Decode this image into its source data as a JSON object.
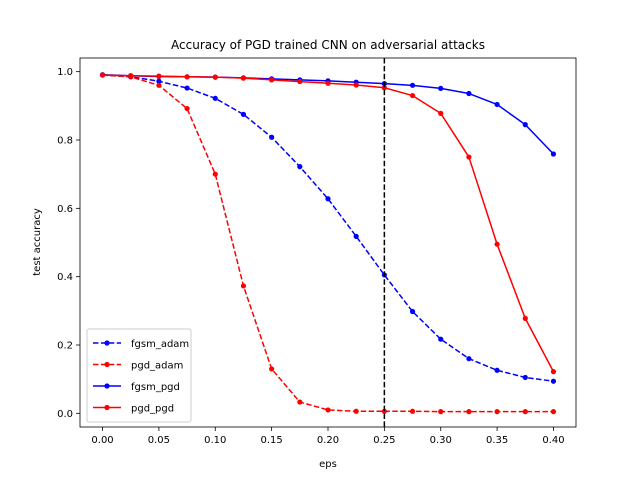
{
  "chart_data": {
    "type": "line",
    "title": "Accuracy of PGD trained CNN on adversarial attacks",
    "xlabel": "eps",
    "ylabel": "test accuracy",
    "xlim": [
      -0.02,
      0.42
    ],
    "ylim": [
      -0.04,
      1.04
    ],
    "xticks": [
      0.0,
      0.05,
      0.1,
      0.15,
      0.2,
      0.25,
      0.3,
      0.35,
      0.4
    ],
    "xtick_labels": [
      "0.00",
      "0.05",
      "0.10",
      "0.15",
      "0.20",
      "0.25",
      "0.30",
      "0.35",
      "0.40"
    ],
    "yticks": [
      0.0,
      0.2,
      0.4,
      0.6,
      0.8,
      1.0
    ],
    "ytick_labels": [
      "0.0",
      "0.2",
      "0.4",
      "0.6",
      "0.8",
      "1.0"
    ],
    "grid": false,
    "legend_position": "lower-left",
    "vline": {
      "x": 0.25,
      "color": "#000000",
      "style": "dashed"
    },
    "x": [
      0.0,
      0.025,
      0.05,
      0.075,
      0.1,
      0.125,
      0.15,
      0.175,
      0.2,
      0.225,
      0.25,
      0.275,
      0.3,
      0.325,
      0.35,
      0.375,
      0.4
    ],
    "series": [
      {
        "name": "fgsm_adam",
        "color": "#0000ff",
        "style": "dashed",
        "values": [
          0.99,
          0.985,
          0.972,
          0.952,
          0.922,
          0.875,
          0.808,
          0.722,
          0.628,
          0.518,
          0.405,
          0.298,
          0.217,
          0.16,
          0.126,
          0.105,
          0.094
        ]
      },
      {
        "name": "pgd_adam",
        "color": "#ff0000",
        "style": "dashed",
        "values": [
          0.99,
          0.985,
          0.96,
          0.892,
          0.7,
          0.373,
          0.13,
          0.033,
          0.01,
          0.006,
          0.006,
          0.006,
          0.005,
          0.005,
          0.005,
          0.005,
          0.005
        ]
      },
      {
        "name": "fgsm_pgd",
        "color": "#0000ff",
        "style": "solid",
        "values": [
          0.991,
          0.988,
          0.986,
          0.985,
          0.984,
          0.982,
          0.979,
          0.976,
          0.973,
          0.969,
          0.965,
          0.96,
          0.951,
          0.936,
          0.904,
          0.845,
          0.759
        ]
      },
      {
        "name": "pgd_pgd",
        "color": "#ff0000",
        "style": "solid",
        "values": [
          0.99,
          0.988,
          0.987,
          0.985,
          0.984,
          0.981,
          0.976,
          0.971,
          0.966,
          0.961,
          0.953,
          0.93,
          0.878,
          0.75,
          0.495,
          0.278,
          0.122
        ]
      }
    ]
  }
}
